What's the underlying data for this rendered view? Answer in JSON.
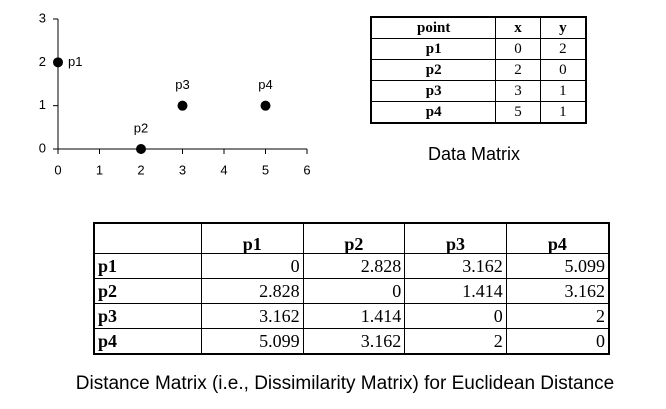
{
  "chart_data": {
    "type": "scatter",
    "labels": [
      "p1",
      "p2",
      "p3",
      "p4"
    ],
    "x": [
      0,
      2,
      3,
      5
    ],
    "values": [
      2,
      0,
      1,
      1
    ],
    "color": "#000000",
    "xlim": [
      0,
      6
    ],
    "ylim": [
      0,
      3
    ],
    "xticks": [
      0,
      1,
      2,
      3,
      4,
      5,
      6
    ],
    "yticks": [
      0,
      1,
      2,
      3
    ]
  },
  "data_matrix": {
    "header": [
      "point",
      "x",
      "y"
    ],
    "rows": [
      [
        "p1",
        0,
        2
      ],
      [
        "p2",
        2,
        0
      ],
      [
        "p3",
        3,
        1
      ],
      [
        "p4",
        5,
        1
      ]
    ],
    "caption": "Data Matrix"
  },
  "distance_matrix": {
    "header": [
      "p1",
      "p2",
      "p3",
      "p4"
    ],
    "rows": [
      [
        "p1",
        0,
        2.828,
        3.162,
        5.099
      ],
      [
        "p2",
        2.828,
        0,
        1.414,
        3.162
      ],
      [
        "p3",
        3.162,
        1.414,
        0,
        2
      ],
      [
        "p4",
        5.099,
        3.162,
        2,
        0
      ]
    ],
    "caption": "Distance Matrix (i.e., Dissimilarity Matrix) for Euclidean Distance"
  }
}
